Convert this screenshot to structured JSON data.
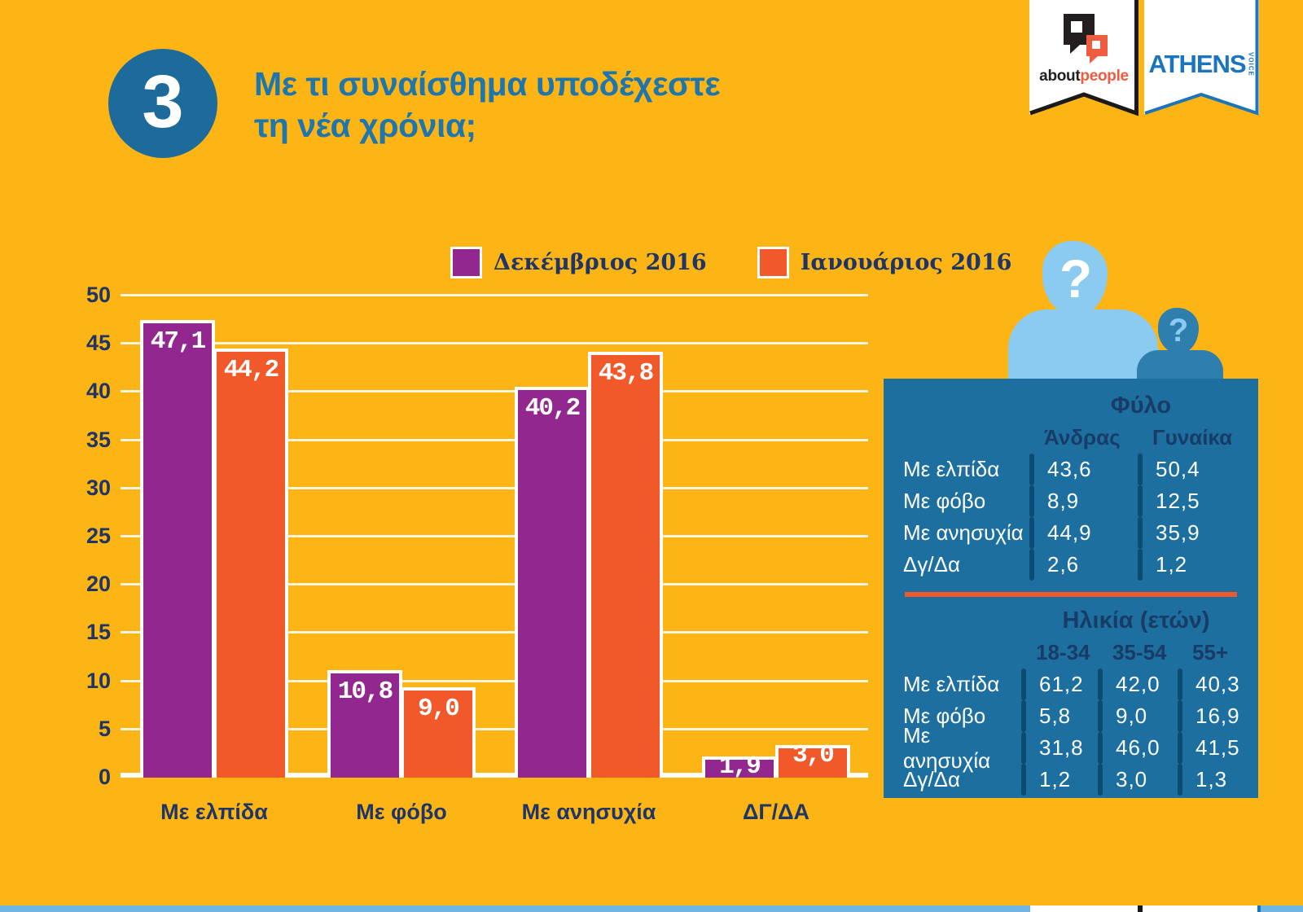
{
  "header": {
    "step_number": "3",
    "title_line1": "Με τι συναίσθημα υποδέχεστε",
    "title_line2": "τη νέα χρόνια;"
  },
  "logos": {
    "aboutpeople": {
      "about": "about",
      "people": "people"
    },
    "athens_voice": {
      "name": "ATHENS",
      "sub": "VOICE"
    }
  },
  "chart_data": {
    "type": "bar",
    "title": "Με τι συναίσθημα υποδέχεστε τη νέα χρόνια;",
    "categories": [
      "Με ελπίδα",
      "Με φόβο",
      "Με ανησυχία",
      "ΔΓ/ΔΑ"
    ],
    "series": [
      {
        "name": "Δεκέμβριος 2016",
        "color": "#92278F",
        "values": [
          47.1,
          10.8,
          40.2,
          1.9
        ],
        "labels": [
          "47,1",
          "10,8",
          "40,2",
          "1,9"
        ]
      },
      {
        "name": "Ιανουάριος 2016",
        "color": "#F1592A",
        "values": [
          44.2,
          9.0,
          43.8,
          3.0
        ],
        "labels": [
          "44,2",
          "9,0",
          "43,8",
          "3,0"
        ]
      }
    ],
    "ylim": [
      0,
      50
    ],
    "yticks": [
      0,
      5,
      10,
      15,
      20,
      25,
      30,
      35,
      40,
      45,
      50
    ],
    "grid": true,
    "legend_position": "top-center",
    "value_format": "comma-decimal"
  },
  "demographics": {
    "gender": {
      "title": "Φύλο",
      "columns": [
        "Άνδρας",
        "Γυναίκα"
      ],
      "rows": [
        {
          "label": "Με ελπίδα",
          "values": [
            "43,6",
            "50,4"
          ]
        },
        {
          "label": "Με φόβο",
          "values": [
            "8,9",
            "12,5"
          ]
        },
        {
          "label": "Με ανησυχία",
          "values": [
            "44,9",
            "35,9"
          ]
        },
        {
          "label": "Δγ/Δα",
          "values": [
            "2,6",
            "1,2"
          ]
        }
      ]
    },
    "age": {
      "title": "Ηλικία (ετών)",
      "columns": [
        "18-34",
        "35-54",
        "55+"
      ],
      "rows": [
        {
          "label": "Με ελπίδα",
          "values": [
            "61,2",
            "42,0",
            "40,3"
          ]
        },
        {
          "label": "Με φόβο",
          "values": [
            "5,8",
            "9,0",
            "16,9"
          ]
        },
        {
          "label": "Με ανησυχία",
          "values": [
            "31,8",
            "46,0",
            "41,5"
          ]
        },
        {
          "label": "Δγ/Δα",
          "values": [
            "1,2",
            "3,0",
            "1,3"
          ]
        }
      ]
    }
  },
  "colors": {
    "background": "#FDB515",
    "series_december": "#92278F",
    "series_january": "#F1592A",
    "panel_blue": "#1D6F9F",
    "navy_text": "#1E3566",
    "title_blue": "#1E76AC",
    "athens_blue": "#1B75BC",
    "aboutpeople_orange": "#F15B40",
    "silhouette_light": "#8BCBF2",
    "silhouette_dark": "#2F7FAE"
  }
}
